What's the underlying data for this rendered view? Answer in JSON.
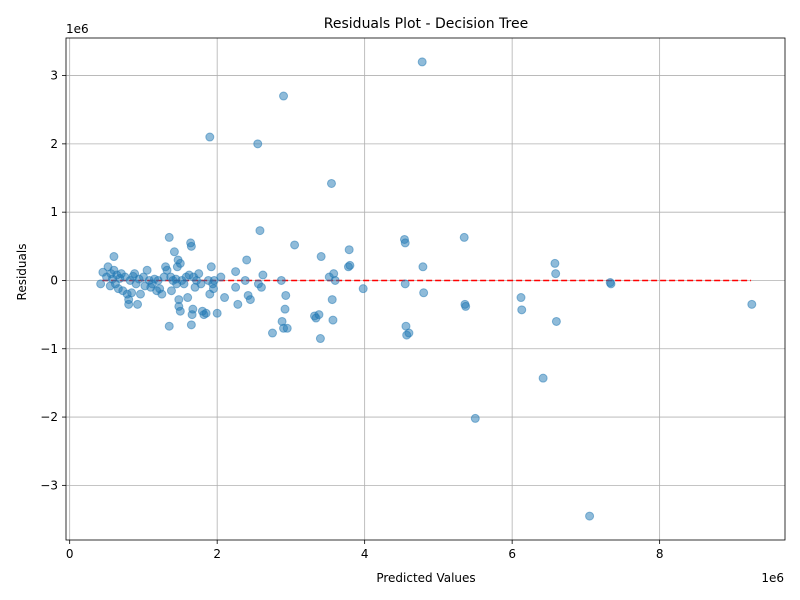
{
  "chart_data": {
    "type": "scatter",
    "title": "Residuals Plot - Decision Tree",
    "xlabel": "Predicted Values",
    "ylabel": "Residuals",
    "x_offset_label": "1e6",
    "y_offset_label": "1e6",
    "xlim": [
      -0.05,
      9.7
    ],
    "ylim": [
      -3.8,
      3.55
    ],
    "xticks": [
      0,
      2,
      4,
      6,
      8
    ],
    "xtick_labels": [
      "0",
      "2",
      "4",
      "6",
      "8"
    ],
    "yticks": [
      -3,
      -2,
      -1,
      0,
      1,
      2,
      3
    ],
    "ytick_labels": [
      "−3",
      "−2",
      "−1",
      "0",
      "1",
      "2",
      "3"
    ],
    "grid": true,
    "reference_line": {
      "y": 0,
      "x_range": [
        0.44,
        9.24
      ],
      "color": "#ff0000",
      "style": "dashed"
    },
    "point_color": "#1f77b4",
    "points": [
      [
        0.42,
        -0.05
      ],
      [
        0.45,
        0.12
      ],
      [
        0.5,
        0.05
      ],
      [
        0.52,
        0.2
      ],
      [
        0.55,
        -0.08
      ],
      [
        0.56,
        0.1
      ],
      [
        0.58,
        0.02
      ],
      [
        0.6,
        0.35
      ],
      [
        0.6,
        0.15
      ],
      [
        0.62,
        -0.05
      ],
      [
        0.64,
        0.08
      ],
      [
        0.66,
        -0.12
      ],
      [
        0.68,
        0.03
      ],
      [
        0.7,
        0.1
      ],
      [
        0.72,
        -0.15
      ],
      [
        0.75,
        0.05
      ],
      [
        0.78,
        -0.2
      ],
      [
        0.8,
        -0.35
      ],
      [
        0.8,
        -0.28
      ],
      [
        0.82,
        0.0
      ],
      [
        0.84,
        -0.18
      ],
      [
        0.86,
        0.06
      ],
      [
        0.88,
        0.1
      ],
      [
        0.9,
        -0.05
      ],
      [
        0.92,
        -0.35
      ],
      [
        0.94,
        0.02
      ],
      [
        0.96,
        -0.2
      ],
      [
        1.0,
        0.05
      ],
      [
        1.02,
        -0.08
      ],
      [
        1.05,
        0.15
      ],
      [
        1.08,
        0.0
      ],
      [
        1.1,
        -0.1
      ],
      [
        1.12,
        -0.05
      ],
      [
        1.15,
        0.02
      ],
      [
        1.18,
        -0.15
      ],
      [
        1.2,
        0.0
      ],
      [
        1.22,
        -0.12
      ],
      [
        1.25,
        -0.2
      ],
      [
        1.28,
        0.05
      ],
      [
        1.3,
        0.2
      ],
      [
        1.32,
        0.15
      ],
      [
        1.35,
        0.63
      ],
      [
        1.35,
        -0.67
      ],
      [
        1.37,
        0.05
      ],
      [
        1.38,
        -0.15
      ],
      [
        1.4,
        0.0
      ],
      [
        1.42,
        0.42
      ],
      [
        1.44,
        0.02
      ],
      [
        1.45,
        -0.05
      ],
      [
        1.46,
        0.2
      ],
      [
        1.47,
        0.3
      ],
      [
        1.48,
        -0.28
      ],
      [
        1.48,
        -0.38
      ],
      [
        1.5,
        0.25
      ],
      [
        1.5,
        -0.45
      ],
      [
        1.52,
        0.0
      ],
      [
        1.55,
        -0.05
      ],
      [
        1.58,
        0.05
      ],
      [
        1.6,
        -0.25
      ],
      [
        1.62,
        0.08
      ],
      [
        1.64,
        0.55
      ],
      [
        1.65,
        0.5
      ],
      [
        1.65,
        -0.65
      ],
      [
        1.66,
        -0.5
      ],
      [
        1.67,
        -0.42
      ],
      [
        1.68,
        0.05
      ],
      [
        1.7,
        -0.1
      ],
      [
        1.72,
        0.0
      ],
      [
        1.75,
        0.1
      ],
      [
        1.78,
        -0.05
      ],
      [
        1.8,
        -0.45
      ],
      [
        1.82,
        -0.5
      ],
      [
        1.85,
        -0.48
      ],
      [
        1.88,
        0.0
      ],
      [
        1.9,
        2.1
      ],
      [
        1.9,
        -0.2
      ],
      [
        1.92,
        0.2
      ],
      [
        1.94,
        -0.05
      ],
      [
        1.95,
        -0.12
      ],
      [
        1.96,
        0.0
      ],
      [
        2.0,
        -0.48
      ],
      [
        2.05,
        0.05
      ],
      [
        2.1,
        -0.25
      ],
      [
        2.25,
        -0.1
      ],
      [
        2.25,
        0.13
      ],
      [
        2.28,
        -0.35
      ],
      [
        2.38,
        0.0
      ],
      [
        2.4,
        0.3
      ],
      [
        2.42,
        -0.22
      ],
      [
        2.45,
        -0.28
      ],
      [
        2.55,
        2.0
      ],
      [
        2.56,
        -0.05
      ],
      [
        2.58,
        0.73
      ],
      [
        2.6,
        -0.1
      ],
      [
        2.62,
        0.08
      ],
      [
        2.75,
        -0.77
      ],
      [
        2.87,
        0.0
      ],
      [
        2.88,
        -0.6
      ],
      [
        2.9,
        2.7
      ],
      [
        2.9,
        -0.7
      ],
      [
        2.92,
        -0.42
      ],
      [
        2.93,
        -0.22
      ],
      [
        2.95,
        -0.7
      ],
      [
        3.05,
        0.52
      ],
      [
        3.32,
        -0.52
      ],
      [
        3.34,
        -0.55
      ],
      [
        3.38,
        -0.5
      ],
      [
        3.4,
        -0.85
      ],
      [
        3.41,
        0.35
      ],
      [
        3.52,
        0.05
      ],
      [
        3.55,
        1.42
      ],
      [
        3.56,
        -0.28
      ],
      [
        3.57,
        -0.58
      ],
      [
        3.58,
        0.1
      ],
      [
        3.6,
        0.0
      ],
      [
        3.78,
        0.2
      ],
      [
        3.79,
        0.45
      ],
      [
        3.8,
        0.22
      ],
      [
        3.98,
        -0.12
      ],
      [
        4.54,
        0.6
      ],
      [
        4.55,
        0.55
      ],
      [
        4.55,
        -0.05
      ],
      [
        4.56,
        -0.67
      ],
      [
        4.57,
        -0.8
      ],
      [
        4.6,
        -0.77
      ],
      [
        4.78,
        3.2
      ],
      [
        4.79,
        0.2
      ],
      [
        4.8,
        -0.18
      ],
      [
        5.35,
        0.63
      ],
      [
        5.36,
        -0.35
      ],
      [
        5.37,
        -0.38
      ],
      [
        5.5,
        -2.02
      ],
      [
        6.12,
        -0.25
      ],
      [
        6.13,
        -0.43
      ],
      [
        6.42,
        -1.43
      ],
      [
        6.58,
        0.25
      ],
      [
        6.59,
        0.1
      ],
      [
        6.6,
        -0.6
      ],
      [
        7.33,
        -0.03
      ],
      [
        7.34,
        -0.05
      ],
      [
        7.05,
        -3.45
      ],
      [
        9.25,
        -0.35
      ]
    ]
  }
}
